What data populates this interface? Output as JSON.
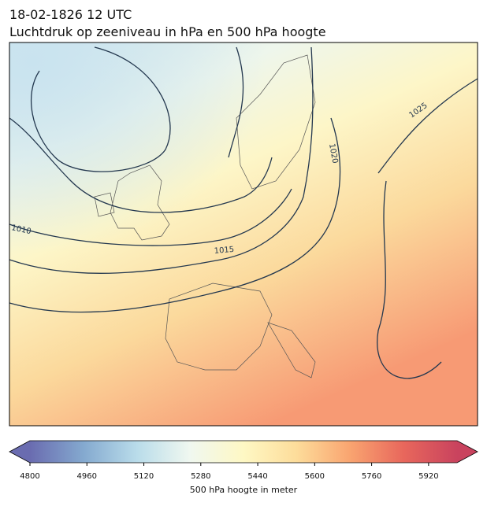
{
  "header": {
    "title": "18-02-1826 12 UTC",
    "subtitle": "Luchtdruk op zeeniveau in hPa en 500 hPa hoogte"
  },
  "map": {
    "contour_labels": [
      "1010",
      "1015",
      "1020",
      "1025"
    ]
  },
  "colorbar": {
    "label": "500 hPa hoogte in meter",
    "lim": [
      4800,
      6000
    ],
    "ticks": [
      4800,
      4960,
      5120,
      5280,
      5440,
      5600,
      5760,
      5920
    ],
    "colors": [
      "#6a6cb0",
      "#84a9cf",
      "#b9dcea",
      "#f0f8f0",
      "#fef8c4",
      "#fddc9a",
      "#f9a470",
      "#e8675c",
      "#c9435e"
    ]
  }
}
